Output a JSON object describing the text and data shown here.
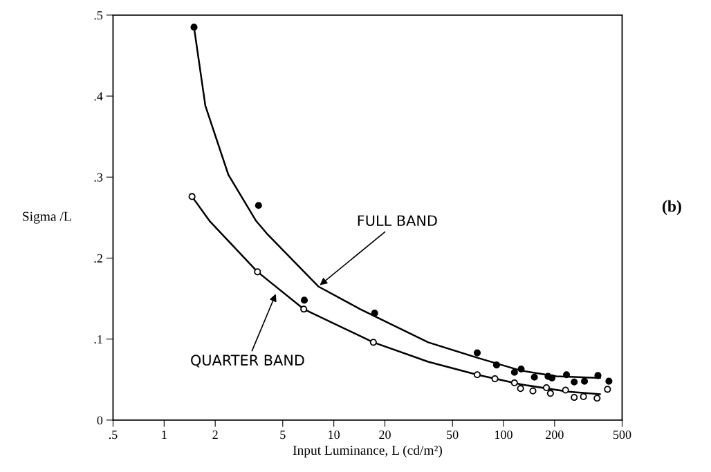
{
  "chart_data": {
    "type": "scatter",
    "xlabel": "Input Luminance, L (cd/m²)",
    "ylabel": "Sigma /L",
    "log": "x",
    "xlim": [
      0.5,
      500
    ],
    "ylim": [
      0,
      0.5
    ],
    "xticks": [
      {
        "value": 0.5,
        "label": ".5"
      },
      1,
      2,
      5,
      10,
      20,
      50,
      100,
      200,
      500
    ],
    "yticks": [
      0,
      {
        "value": 0.1,
        "label": ".1"
      },
      {
        "value": 0.2,
        "label": ".2"
      },
      {
        "value": 0.3,
        "label": ".3"
      },
      {
        "value": 0.4,
        "label": ".4"
      },
      {
        "value": 0.5,
        "label": ".5"
      }
    ],
    "grid": false,
    "legend": false,
    "marker": "circle",
    "series": [
      {
        "color": "#000000",
        "x": [
          1.5,
          3.6,
          6.7,
          17.4,
          70,
          91,
          116,
          127,
          152,
          183,
          193,
          235,
          261,
          300,
          360,
          418
        ],
        "values": [
          0.485,
          0.265,
          0.148,
          0.132,
          0.083,
          0.068,
          0.059,
          0.063,
          0.053,
          0.054,
          0.052,
          0.056,
          0.047,
          0.048,
          0.055,
          0.048
        ]
      },
      {
        "color": "#ffffff",
        "x": [
          1.46,
          3.55,
          6.65,
          17.1,
          70,
          89,
          116,
          126,
          149,
          179,
          189,
          232,
          261,
          296,
          356,
          410
        ],
        "values": [
          0.276,
          0.183,
          0.137,
          0.096,
          0.056,
          0.051,
          0.046,
          0.039,
          0.036,
          0.04,
          0.033,
          0.037,
          0.028,
          0.029,
          0.027,
          0.038
        ]
      },
      {
        "type": "line",
        "color": "#000000",
        "marker": "none",
        "x": [
          1.5,
          1.75,
          2.39,
          3.48,
          4.08,
          8.1,
          14.3,
          36,
          70,
          127,
          205,
          370
        ],
        "values": [
          0.485,
          0.388,
          0.303,
          0.246,
          0.229,
          0.165,
          0.137,
          0.096,
          0.077,
          0.061,
          0.054,
          0.052
        ]
      },
      {
        "type": "line",
        "color": "#000000",
        "marker": "none",
        "x": [
          1.46,
          1.85,
          3.55,
          6.65,
          17.1,
          36,
          70,
          127,
          240,
          370
        ],
        "values": [
          0.276,
          0.246,
          0.183,
          0.137,
          0.096,
          0.072,
          0.056,
          0.044,
          0.035,
          0.032
        ]
      }
    ],
    "annotations": [
      {
        "text": "FULL BAND",
        "x": 8.1,
        "y": 0.165
      },
      {
        "text": "QUARTER BAND",
        "x": 4.6,
        "y": 0.158
      },
      "(b)"
    ]
  }
}
